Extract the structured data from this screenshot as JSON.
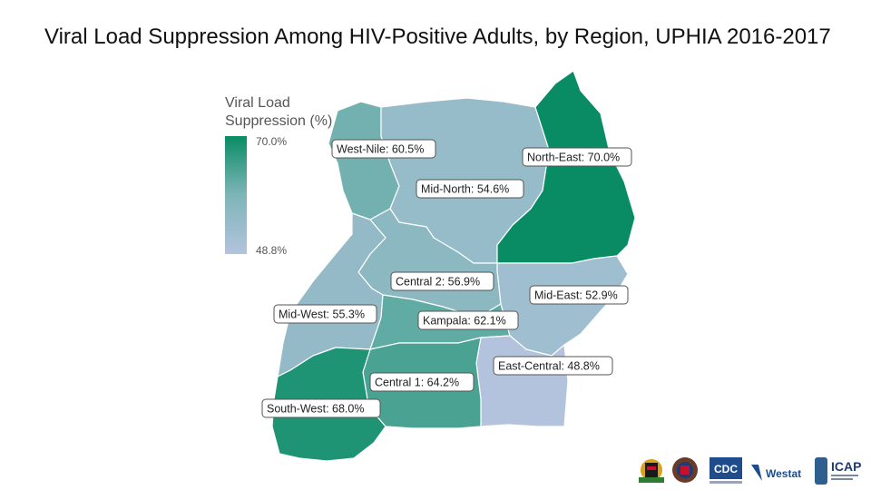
{
  "title": "Viral Load Suppression Among HIV-Positive Adults, by Region, UPHIA 2016-2017",
  "legend": {
    "title_line1": "Viral Load",
    "title_line2": "Suppression (%)",
    "max_label": "70.0%",
    "min_label": "48.8%",
    "max_value": 70.0,
    "min_value": 48.8,
    "color_high": "#098c64",
    "color_mid": "#7eb5b8",
    "color_low": "#b3c3dd"
  },
  "regions": [
    {
      "id": "west-nile",
      "label": "West-Nile: 60.5%",
      "value": 60.5
    },
    {
      "id": "north-east",
      "label": "North-East: 70.0%",
      "value": 70.0
    },
    {
      "id": "mid-north",
      "label": "Mid-North: 54.6%",
      "value": 54.6
    },
    {
      "id": "central-2",
      "label": "Central 2: 56.9%",
      "value": 56.9
    },
    {
      "id": "mid-east",
      "label": "Mid-East: 52.9%",
      "value": 52.9
    },
    {
      "id": "mid-west",
      "label": "Mid-West: 55.3%",
      "value": 55.3
    },
    {
      "id": "kampala",
      "label": "Kampala: 62.1%",
      "value": 62.1
    },
    {
      "id": "east-central",
      "label": "East-Central: 48.8%",
      "value": 48.8
    },
    {
      "id": "central-1",
      "label": "Central 1: 64.2%",
      "value": 64.2
    },
    {
      "id": "south-west",
      "label": "South-West: 68.0%",
      "value": 68.0
    }
  ],
  "logos": {
    "cdc": "CDC",
    "westat": "Westat",
    "icap": "ICAP"
  }
}
